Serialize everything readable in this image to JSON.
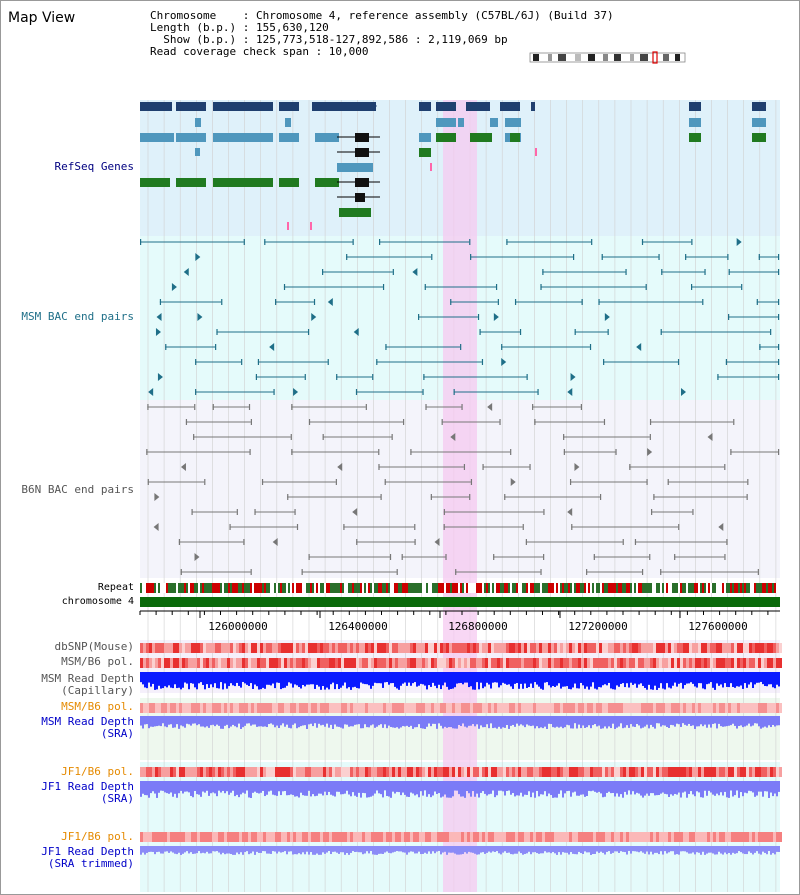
{
  "title": "Map View",
  "info": {
    "chromosome": "Chromosome    : Chromosome 4, reference assembly (C57BL/6J) (Build 37)",
    "length": "Length (b.p.) : 155,630,120",
    "show": "  Show (b.p.) : 125,773,518-127,892,586 : 2,119,069 bp",
    "span": "Read coverage check span : 10,000"
  },
  "tracks": {
    "refseq": "RefSeq Genes",
    "msm_bac": "MSM BAC end pairs",
    "b6n_bac": "B6N BAC end pairs",
    "repeat": "Repeat",
    "chromosome": "chromosome 4",
    "dbsnp": "dbSNP(Mouse)",
    "msm_b6_pol_1": "MSM/B6 pol.",
    "msm_depth_cap": "MSM Read Depth\n(Capillary)",
    "msm_b6_pol_2": "MSM/B6 pol.",
    "msm_depth_sra": "MSM Read Depth\n(SRA)",
    "jf1_b6_pol_1": "JF1/B6 pol.",
    "jf1_depth_sra": "JF1 Read Depth\n(SRA)",
    "jf1_b6_pol_2": "JF1/B6 pol.",
    "jf1_depth_trim": "JF1 Read Depth\n(SRA trimmed)"
  },
  "axis_ticks": [
    "126000000",
    "126400000",
    "126800000",
    "127200000",
    "127600000"
  ],
  "colors": {
    "refseq_bg": "#dff1fa",
    "msm_bg": "#e5fbfb",
    "b6n_bg": "#f4f4fb",
    "highlight": "#f6c9f0",
    "navy": "#1f3f6f",
    "steel": "#4f97bd",
    "green": "#207a20",
    "teal": "#1f6f88",
    "gray": "#777777",
    "label_navy": "#000080",
    "label_teal": "#1f6f88",
    "label_orange": "#e58a00",
    "label_blue": "#0000c8"
  }
}
